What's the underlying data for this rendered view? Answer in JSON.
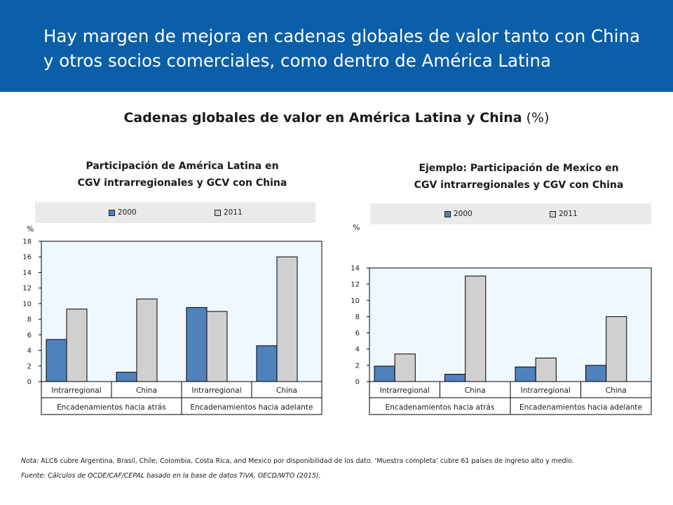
{
  "header": {
    "title_line1": "Hay margen de mejora en cadenas globales de valor tanto con China",
    "title_line2": "y otros socios comerciales, como dentro de América Latina"
  },
  "main_title": {
    "bold": "Cadenas globales de valor en América Latina y China",
    "suffix": " (%)"
  },
  "colors": {
    "series_2000": "#4f81bd",
    "series_2011": "#d0d0d0",
    "plot_bg": "#f0f8ff",
    "header_bg": "#0a5fa8"
  },
  "chart_data": [
    {
      "type": "bar",
      "title_line1": "Participación de América Latina en",
      "title_line2": "CGV intrarregionales y GCV con China",
      "unit_label": "%",
      "categories": [
        "Intrarregional",
        "China",
        "Intrarregional",
        "China"
      ],
      "groups": [
        "Encadenamientos hacia atrás",
        "Encadenamientos hacia adelante"
      ],
      "series": [
        {
          "name": "2000",
          "values": [
            5.4,
            1.2,
            9.5,
            4.6
          ]
        },
        {
          "name": "2011",
          "values": [
            9.3,
            10.6,
            9.0,
            16.0
          ]
        }
      ],
      "ylim": [
        0,
        18
      ],
      "yticks": [
        "0",
        "2",
        "4",
        "6",
        "8",
        "10",
        "12",
        "14",
        "16",
        "18"
      ],
      "legend": "top"
    },
    {
      "type": "bar",
      "title_line1": "Ejemplo: Participación de Mexico en",
      "title_line2": "CGV intrarregionales y CGV con China",
      "unit_label": "%",
      "categories": [
        "Intrarregional",
        "China",
        "Intrarregional",
        "China"
      ],
      "groups": [
        "Encadenamientos hacia atrás",
        "Encadenamientos hacia adelante"
      ],
      "series": [
        {
          "name": "2000",
          "values": [
            1.9,
            0.9,
            1.8,
            2.0
          ]
        },
        {
          "name": "2011",
          "values": [
            3.4,
            13.0,
            2.9,
            8.0
          ]
        }
      ],
      "ylim": [
        0,
        14
      ],
      "yticks": [
        "0",
        "2",
        "4",
        "6",
        "8",
        "10",
        "12",
        "14"
      ],
      "legend": "top"
    }
  ],
  "footer": {
    "note_label": "Nota:",
    "note_text": " ALC6 cubre Argentina, Brasil, Chile, Colombia, Costa Rica, and Mexico por  disponibilidad de los dato. ‘Muestra completa’ cubre 61 países de ingreso alto y medio.",
    "source": "Fuente: Cálculos de OCDE/CAF/CEPAL basado en la base de datos TiVA, OECD/WTO (2015)."
  }
}
